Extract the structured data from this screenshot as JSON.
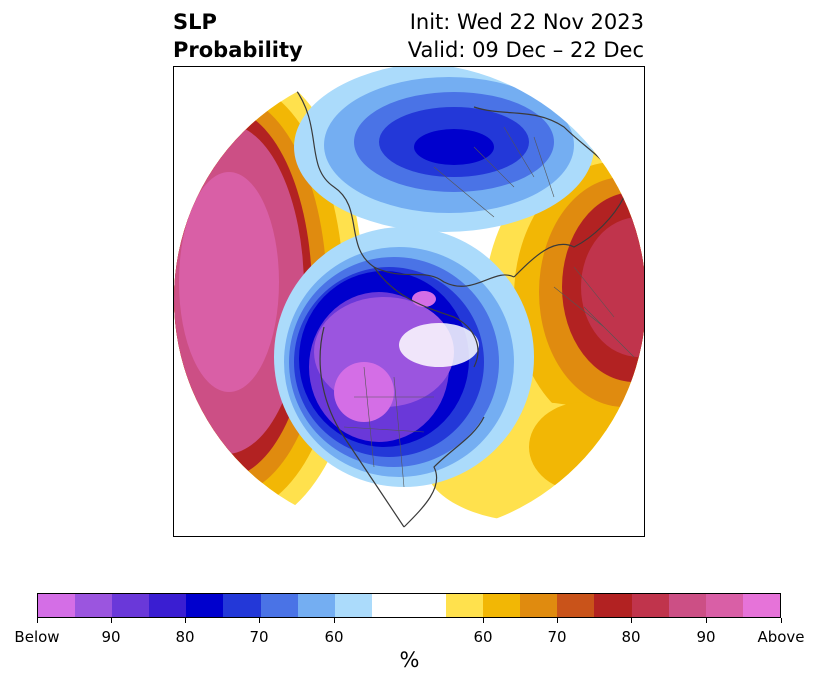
{
  "header": {
    "title_line1": "SLP",
    "title_line2": "Probability",
    "init_text": "Init: Wed 22 Nov 2023",
    "valid_text": "Valid: 09 Dec – 22 Dec"
  },
  "colorbar": {
    "below_colors": [
      "#d46ee6",
      "#9b55df",
      "#6a38d9",
      "#3a1ed2",
      "#0000cd",
      "#2338d8",
      "#4a73e6",
      "#74aef2",
      "#abdbfb"
    ],
    "neutral_color": "#ffffff",
    "above_colors": [
      "#ffe14d",
      "#f2b705",
      "#e08b0f",
      "#c9531a",
      "#b22222",
      "#c0344c",
      "#cc4f85",
      "#d95fa6",
      "#e673d9"
    ],
    "tick_labels": [
      "Below",
      "90",
      "80",
      "70",
      "60",
      "60",
      "70",
      "80",
      "90",
      "Above"
    ],
    "unit_label": "%"
  }
}
